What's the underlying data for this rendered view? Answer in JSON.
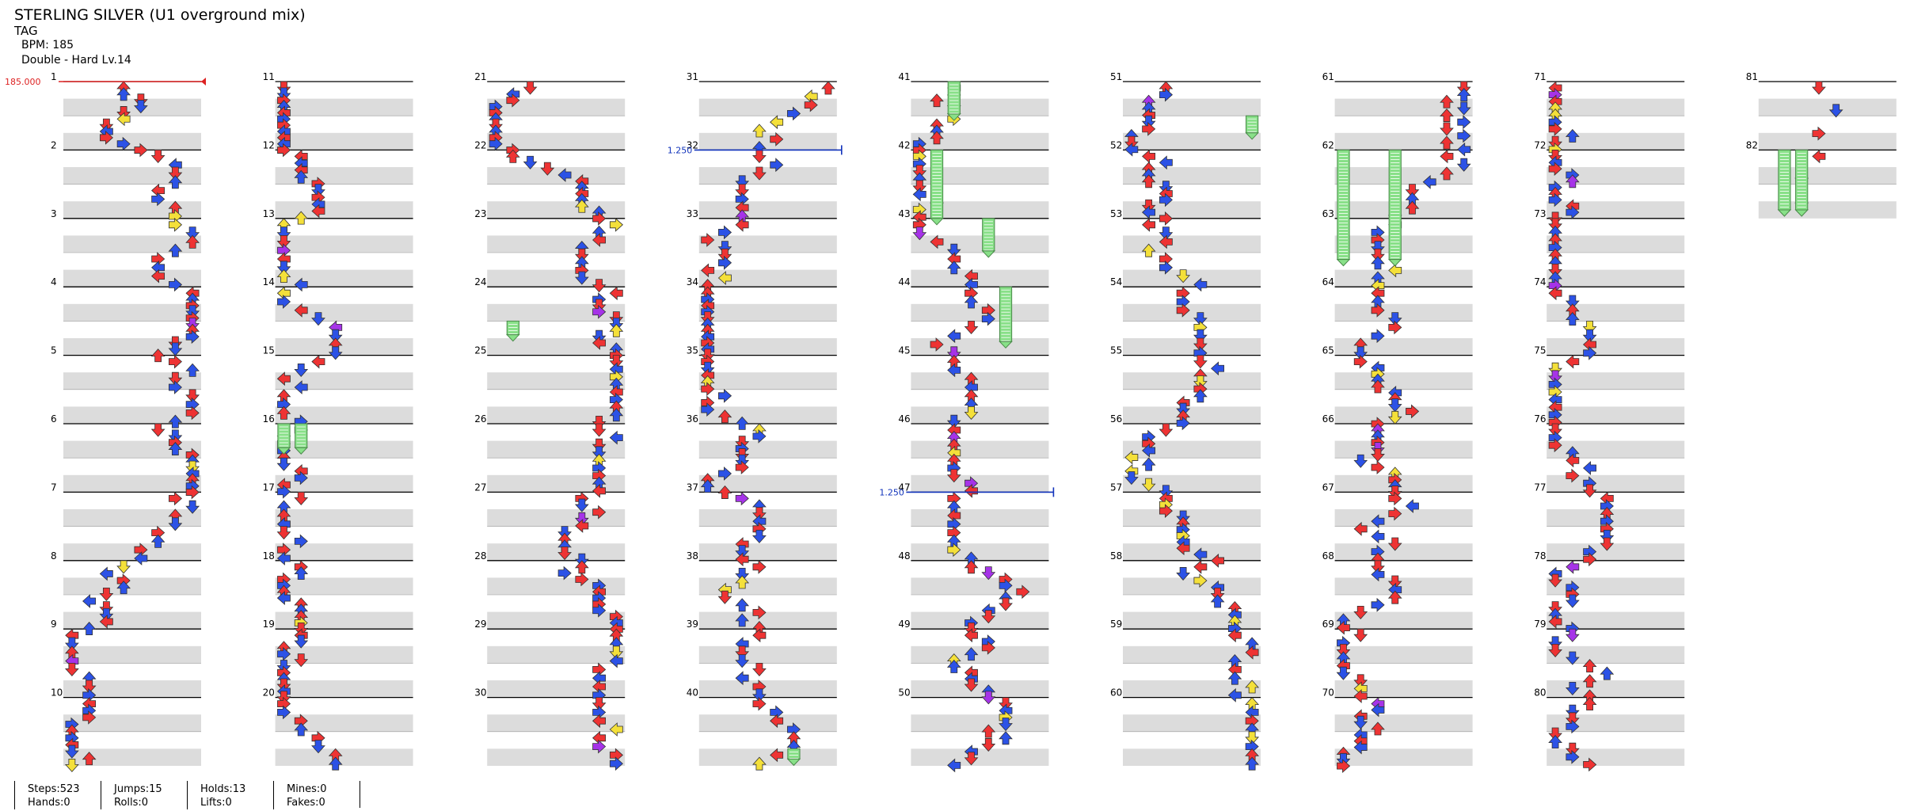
{
  "header": {
    "title": "STERLING SILVER (U1 overground mix)",
    "subtitle": "TAG",
    "bpm": "BPM: 185",
    "difficulty": "Double - Hard Lv.14"
  },
  "colors": {
    "red": "#ee3333",
    "blue": "#2c52e6",
    "yellow": "#f4e03a",
    "purple": "#a633e8",
    "hold": "#88e088",
    "band": "#dcdcdc",
    "bpm_marker": "#dd2222",
    "scroll_marker": "#1133bb"
  },
  "icons": {
    "step": "arrow-icon",
    "hold": "hold-bar-icon",
    "bpm_change": "bpm-marker-icon",
    "scroll_change": "scroll-marker-icon"
  },
  "chart_data": {
    "type": "stepchart",
    "style": "Double",
    "lanes": 8,
    "measures_total": 82,
    "measures_per_column": 10,
    "measure_numbers": [
      "1",
      "2",
      "3",
      "4",
      "5",
      "6",
      "7",
      "8",
      "9",
      "10",
      "11",
      "12",
      "13",
      "14",
      "15",
      "16",
      "17",
      "18",
      "19",
      "20",
      "21",
      "22",
      "23",
      "24",
      "25",
      "26",
      "27",
      "28",
      "29",
      "30",
      "31",
      "32",
      "33",
      "34",
      "35",
      "36",
      "37",
      "38",
      "39",
      "40",
      "41",
      "42",
      "43",
      "44",
      "45",
      "46",
      "47",
      "48",
      "49",
      "50",
      "51",
      "52",
      "53",
      "54",
      "55",
      "56",
      "57",
      "58",
      "59",
      "60",
      "61",
      "62",
      "63",
      "64",
      "65",
      "66",
      "67",
      "68",
      "69",
      "70",
      "71",
      "72",
      "73",
      "74",
      "75",
      "76",
      "77",
      "78",
      "79",
      "80",
      "81",
      "82"
    ],
    "bpm_changes": [
      {
        "measure": 1,
        "beat": 0,
        "label": "185.000"
      }
    ],
    "scroll_changes": [
      {
        "measure": 32,
        "beat": 0,
        "label": "1.250"
      },
      {
        "measure": 47,
        "beat": 0,
        "label": "1.250"
      }
    ],
    "holds": [
      {
        "measure": 16,
        "beat": 0.0,
        "lane": 0,
        "length": 1.4,
        "color": "green"
      },
      {
        "measure": 16,
        "beat": 0.0,
        "lane": 1,
        "length": 1.4,
        "color": "green"
      },
      {
        "measure": 41,
        "beat": 0.0,
        "lane": 2,
        "length": 1.9,
        "color": "green"
      },
      {
        "measure": 42,
        "beat": 0.0,
        "lane": 1,
        "length": 4.0,
        "color": "green"
      },
      {
        "measure": 43,
        "beat": 0.0,
        "lane": 4,
        "length": 1.9,
        "color": "green"
      },
      {
        "measure": 44,
        "beat": 0.0,
        "lane": 5,
        "length": 3.2,
        "color": "green"
      },
      {
        "measure": 51,
        "beat": 2.0,
        "lane": 7,
        "length": 1.0,
        "color": "green"
      },
      {
        "measure": 62,
        "beat": 0.0,
        "lane": 0,
        "length": 6.4,
        "color": "green"
      },
      {
        "measure": 62,
        "beat": 0.0,
        "lane": 3,
        "length": 6.4,
        "color": "green"
      },
      {
        "measure": 82,
        "beat": 0.0,
        "lane": 1,
        "length": 3.5,
        "color": "green"
      },
      {
        "measure": 82,
        "beat": 0.0,
        "lane": 2,
        "length": 3.5,
        "color": "green"
      },
      {
        "measure": 24,
        "beat": 2.0,
        "lane": 1,
        "length": 0.8,
        "color": "green"
      },
      {
        "measure": 40,
        "beat": 3.0,
        "lane": 5,
        "length": 0.6,
        "color": "green"
      }
    ],
    "steps_pattern_note": ""
  },
  "footer": {
    "steps": "Steps:523",
    "hands": "Hands:0",
    "jumps": "Jumps:15",
    "rolls": "Rolls:0",
    "holds": "Holds:13",
    "lifts": "Lifts:0",
    "mines": "Mines:0",
    "fakes": "Fakes:0"
  }
}
